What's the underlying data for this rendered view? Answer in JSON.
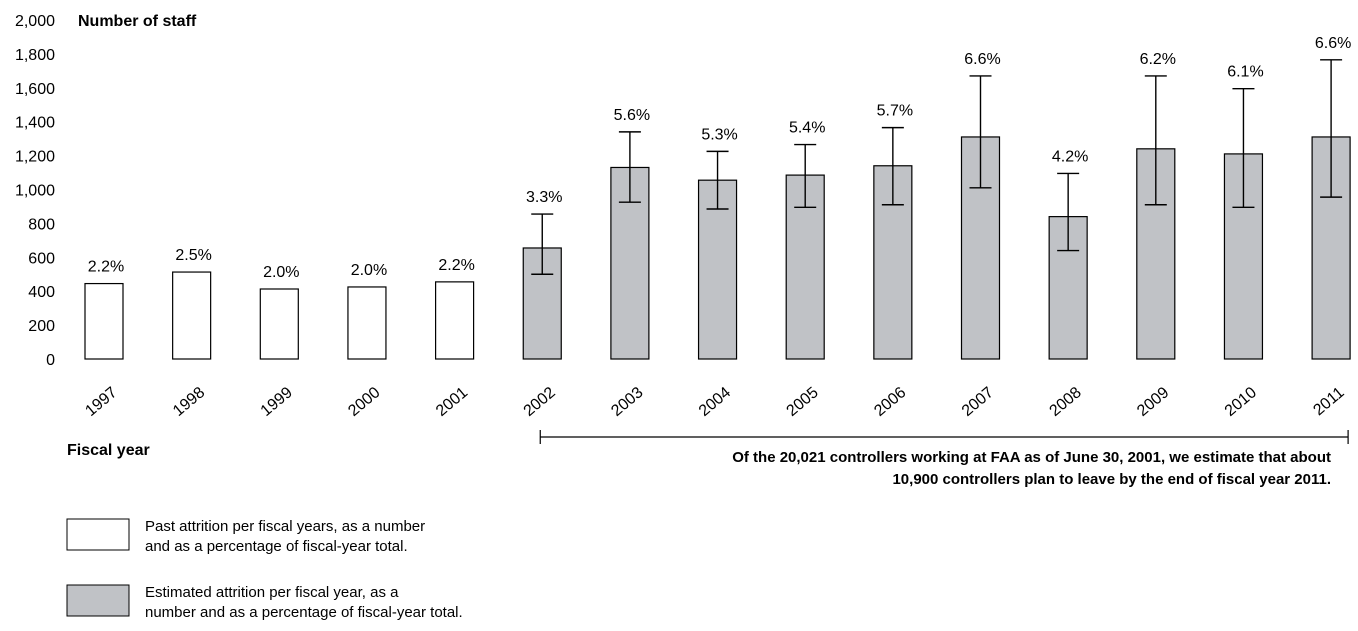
{
  "chart_data": {
    "type": "bar",
    "ylabel": "Number of staff",
    "xlabel": "Fiscal year",
    "ylim": [
      0,
      2000
    ],
    "yticks": [
      0,
      200,
      400,
      600,
      800,
      1000,
      1200,
      1400,
      1600,
      1800,
      2000
    ],
    "ytick_labels": [
      "0",
      "200",
      "400",
      "600",
      "800",
      "1,000",
      "1,200",
      "1,400",
      "1,600",
      "1,800",
      "2,000"
    ],
    "categories": [
      "1997",
      "1998",
      "1999",
      "2000",
      "2001",
      "2002",
      "2003",
      "2004",
      "2005",
      "2006",
      "2007",
      "2008",
      "2009",
      "2010",
      "2011"
    ],
    "series": [
      {
        "name": "Past attrition per fiscal years, as a number and as a percentage of fiscal-year total.",
        "fill": "#ffffff",
        "values": [
          445,
          513,
          413,
          425,
          455,
          null,
          null,
          null,
          null,
          null,
          null,
          null,
          null,
          null,
          null
        ],
        "labels": [
          "2.2%",
          "2.5%",
          "2.0%",
          "2.0%",
          "2.2%",
          null,
          null,
          null,
          null,
          null,
          null,
          null,
          null,
          null,
          null
        ]
      },
      {
        "name": "Estimated attrition per fiscal year, as a number and as a percentage of fiscal-year total.",
        "fill": "#c0c2c6",
        "values": [
          null,
          null,
          null,
          null,
          null,
          655,
          1130,
          1055,
          1085,
          1140,
          1310,
          840,
          1240,
          1210,
          1310
        ],
        "labels": [
          null,
          null,
          null,
          null,
          null,
          "3.3%",
          "5.6%",
          "5.3%",
          "5.4%",
          "5.7%",
          "6.6%",
          "4.2%",
          "6.2%",
          "6.1%",
          "6.6%"
        ],
        "error_low": [
          null,
          null,
          null,
          null,
          null,
          500,
          925,
          885,
          895,
          910,
          1010,
          640,
          910,
          895,
          955
        ],
        "error_high": [
          null,
          null,
          null,
          null,
          null,
          855,
          1340,
          1225,
          1265,
          1365,
          1670,
          1095,
          1670,
          1595,
          1765
        ]
      }
    ],
    "annotation": {
      "line1": "Of the 20,021 controllers working at FAA as of June 30, 2001, we estimate that about",
      "line2": "10,900 controllers plan to leave by the end of fiscal year 2011.",
      "from": "2002",
      "to": "2011"
    },
    "grid": false,
    "legend_position": "bottom-left"
  }
}
